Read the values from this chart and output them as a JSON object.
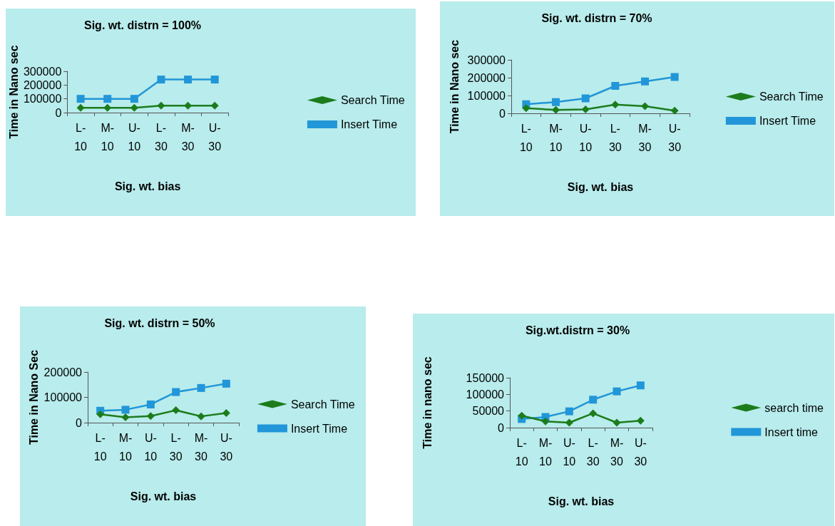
{
  "chart_data": [
    {
      "type": "line",
      "title": "Sig. wt. distrn = 100%",
      "xlabel": "Sig. wt. bias",
      "ylabel": "Time in Nano sec",
      "categories": [
        "L- 10",
        "M- 10",
        "U- 10",
        "L- 30",
        "M- 30",
        "U- 30"
      ],
      "ylim": [
        0,
        300000
      ],
      "yticks": [
        0,
        100000,
        200000,
        300000
      ],
      "grid": false,
      "legend": "right",
      "series": [
        {
          "name": "Search Time",
          "color": "#1c7c1c",
          "marker": "diamond",
          "values": [
            35000,
            35000,
            35000,
            50000,
            50000,
            50000
          ]
        },
        {
          "name": "Insert Time",
          "color": "#2196d8",
          "marker": "square",
          "values": [
            100000,
            100000,
            100000,
            240000,
            240000,
            240000
          ]
        }
      ]
    },
    {
      "type": "line",
      "title": "Sig. wt. distrn = 70%",
      "xlabel": "Sig. wt. bias",
      "ylabel": "Time in Nano sec",
      "categories": [
        "L- 10",
        "M- 10",
        "U- 10",
        "L- 30",
        "M- 30",
        "U- 30"
      ],
      "ylim": [
        0,
        300000
      ],
      "yticks": [
        0,
        100000,
        200000,
        300000
      ],
      "grid": false,
      "legend": "right",
      "series": [
        {
          "name": "Search Time",
          "color": "#1c7c1c",
          "marker": "diamond",
          "values": [
            29000,
            19000,
            22000,
            49000,
            40000,
            15000
          ]
        },
        {
          "name": "Insert Time",
          "color": "#2196d8",
          "marker": "square",
          "values": [
            51000,
            63000,
            84000,
            154000,
            179000,
            204000
          ]
        }
      ]
    },
    {
      "type": "line",
      "title": "Sig. wt. distrn = 50%",
      "xlabel": "Sig. wt. bias",
      "ylabel": "Time in Nano Sec",
      "categories": [
        "L- 10",
        "M- 10",
        "U- 10",
        "L- 30",
        "M- 30",
        "U- 30"
      ],
      "ylim": [
        0,
        200000
      ],
      "yticks": [
        0,
        100000,
        200000
      ],
      "grid": false,
      "legend": "right",
      "series": [
        {
          "name": "Search Time",
          "color": "#1c7c1c",
          "marker": "diamond",
          "values": [
            33000,
            21000,
            26000,
            49000,
            25000,
            38000
          ]
        },
        {
          "name": "Insert Time",
          "color": "#2196d8",
          "marker": "square",
          "values": [
            47000,
            51000,
            72000,
            121000,
            137000,
            154000
          ]
        }
      ]
    },
    {
      "type": "line",
      "title": "Sig.wt.distrn = 30%",
      "xlabel": "Sig. wt. bias",
      "ylabel": "Time in nano sec",
      "categories": [
        "L- 10",
        "M- 10",
        "U- 10",
        "L- 30",
        "M- 30",
        "U- 30"
      ],
      "ylim": [
        0,
        150000
      ],
      "yticks": [
        0,
        50000,
        100000,
        150000
      ],
      "grid": false,
      "legend": "right",
      "series": [
        {
          "name": "search time",
          "color": "#1c7c1c",
          "marker": "diamond",
          "values": [
            36000,
            19000,
            15000,
            43000,
            15000,
            21000
          ]
        },
        {
          "name": "Insert time",
          "color": "#2196d8",
          "marker": "square",
          "values": [
            26000,
            32000,
            49000,
            84000,
            109000,
            127000
          ]
        }
      ]
    }
  ]
}
